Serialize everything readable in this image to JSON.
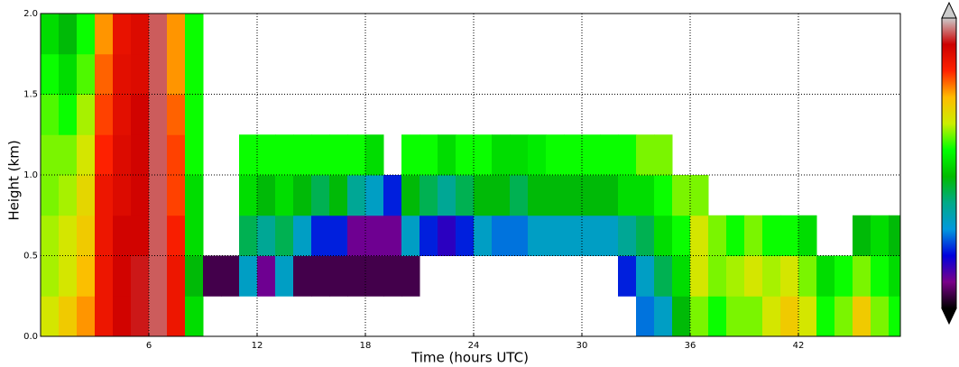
{
  "chart_data": {
    "type": "heatmap",
    "xlabel": "Time (hours UTC)",
    "ylabel": "Height (km)",
    "xlim": [
      0,
      47.65
    ],
    "xticks": [
      6,
      12,
      18,
      24,
      30,
      36,
      42
    ],
    "ylim": [
      0,
      2
    ],
    "yticks": [
      {
        "value": 0,
        "label": "0.0"
      },
      {
        "value": 0.5,
        "label": "0.5"
      },
      {
        "value": 1,
        "label": "1.0"
      },
      {
        "value": 1.5,
        "label": "1.5"
      },
      {
        "value": 2,
        "label": "2.0"
      }
    ],
    "grid": true,
    "zlim": [
      0,
      1
    ],
    "colormap": [
      "#000000",
      "#7a0089",
      "#0000dd",
      "#0099dd",
      "#00aa88",
      "#00bb00",
      "#00ff00",
      "#ccee00",
      "#ffbb00",
      "#ff2200",
      "#cc0000",
      "#cccccc"
    ],
    "x": [
      0,
      1,
      2,
      3,
      4,
      5,
      6,
      7,
      8,
      9,
      10,
      11,
      12,
      13,
      14,
      15,
      16,
      17,
      18,
      19,
      20,
      21,
      22,
      23,
      24,
      25,
      26,
      27,
      28,
      29,
      30,
      31,
      32,
      33,
      34,
      35,
      36,
      37,
      38,
      39,
      40,
      41,
      42,
      43,
      44,
      45,
      46,
      47
    ],
    "y": [
      0,
      0.25,
      0.5,
      0.75,
      1,
      1.25,
      1.5,
      1.75
    ],
    "z": [
      [
        0.65,
        0.62,
        0.62,
        0.6,
        0.6,
        0.58,
        0.55,
        0.5
      ],
      [
        0.7,
        0.65,
        0.65,
        0.62,
        0.6,
        0.55,
        0.5,
        0.45
      ],
      [
        0.75,
        0.72,
        0.7,
        0.68,
        0.65,
        0.62,
        0.58,
        0.55
      ],
      [
        0.85,
        0.85,
        0.85,
        0.85,
        0.82,
        0.8,
        0.78,
        0.75
      ],
      [
        0.9,
        0.9,
        0.9,
        0.88,
        0.88,
        0.87,
        0.87,
        0.86
      ],
      [
        0.92,
        0.92,
        0.9,
        0.9,
        0.9,
        0.9,
        0.88,
        0.88
      ],
      [
        0.95,
        0.95,
        0.95,
        0.95,
        0.95,
        0.95,
        0.95,
        0.95
      ],
      [
        0.85,
        0.85,
        0.83,
        0.8,
        0.8,
        0.78,
        0.75,
        0.75
      ],
      [
        0.5,
        0.45,
        0.5,
        0.5,
        0.55,
        0.55,
        0.55,
        0.55
      ],
      [
        null,
        0.05,
        null,
        null,
        null,
        null,
        null,
        null
      ],
      [
        null,
        0.05,
        null,
        null,
        null,
        null,
        null,
        null
      ],
      [
        null,
        0.3,
        0.4,
        0.5,
        0.55,
        null,
        null,
        null
      ],
      [
        null,
        0.1,
        0.35,
        0.45,
        0.55,
        null,
        null,
        null
      ],
      [
        null,
        0.3,
        0.4,
        0.5,
        0.55,
        null,
        null,
        null
      ],
      [
        null,
        0.05,
        0.3,
        0.45,
        0.55,
        null,
        null,
        null
      ],
      [
        null,
        0.05,
        0.2,
        0.4,
        0.55,
        null,
        null,
        null
      ],
      [
        null,
        0.05,
        0.2,
        0.45,
        0.55,
        null,
        null,
        null
      ],
      [
        null,
        0.05,
        0.1,
        0.35,
        0.55,
        null,
        null,
        null
      ],
      [
        null,
        0.05,
        0.1,
        0.3,
        0.5,
        null,
        null,
        null
      ],
      [
        null,
        0.05,
        0.1,
        0.2,
        null,
        null,
        null,
        null
      ],
      [
        null,
        0.05,
        0.3,
        0.45,
        0.55,
        null,
        null,
        null
      ],
      [
        null,
        null,
        0.2,
        0.4,
        0.55,
        null,
        null,
        null
      ],
      [
        null,
        null,
        0.15,
        0.35,
        0.5,
        null,
        null,
        null
      ],
      [
        null,
        null,
        0.2,
        0.4,
        0.55,
        null,
        null,
        null
      ],
      [
        null,
        null,
        0.3,
        0.45,
        0.55,
        null,
        null,
        null
      ],
      [
        null,
        null,
        0.25,
        0.45,
        0.5,
        null,
        null,
        null
      ],
      [
        null,
        null,
        0.25,
        0.4,
        0.5,
        null,
        null,
        null
      ],
      [
        null,
        null,
        0.3,
        0.45,
        0.52,
        null,
        null,
        null
      ],
      [
        null,
        null,
        0.3,
        0.45,
        0.55,
        null,
        null,
        null
      ],
      [
        null,
        null,
        0.3,
        0.45,
        0.55,
        null,
        null,
        null
      ],
      [
        null,
        null,
        0.3,
        0.45,
        0.55,
        null,
        null,
        null
      ],
      [
        null,
        null,
        0.3,
        0.45,
        0.55,
        null,
        null,
        null
      ],
      [
        null,
        0.2,
        0.35,
        0.5,
        0.55,
        null,
        null,
        null
      ],
      [
        0.25,
        0.3,
        0.4,
        0.5,
        0.6,
        null,
        null,
        null
      ],
      [
        0.3,
        0.4,
        0.5,
        0.55,
        0.6,
        null,
        null,
        null
      ],
      [
        0.45,
        0.5,
        0.55,
        0.6,
        null,
        null,
        null,
        null
      ],
      [
        0.6,
        0.65,
        0.65,
        0.6,
        null,
        null,
        null,
        null
      ],
      [
        0.55,
        0.6,
        0.6,
        null,
        null,
        null,
        null,
        null
      ],
      [
        0.6,
        0.62,
        0.55,
        null,
        null,
        null,
        null,
        null
      ],
      [
        0.6,
        0.65,
        0.6,
        null,
        null,
        null,
        null,
        null
      ],
      [
        0.65,
        0.62,
        0.55,
        null,
        null,
        null,
        null,
        null
      ],
      [
        0.7,
        0.65,
        0.55,
        null,
        null,
        null,
        null,
        null
      ],
      [
        0.65,
        0.6,
        0.5,
        null,
        null,
        null,
        null,
        null
      ],
      [
        0.55,
        0.5,
        null,
        null,
        null,
        null,
        null,
        null
      ],
      [
        0.6,
        0.55,
        null,
        null,
        null,
        null,
        null,
        null
      ],
      [
        0.7,
        0.6,
        0.45,
        null,
        null,
        null,
        null,
        null
      ],
      [
        0.6,
        0.55,
        0.5,
        null,
        null,
        null,
        null,
        null
      ],
      [
        0.55,
        0.5,
        0.45,
        null,
        null,
        null,
        null,
        null
      ]
    ]
  }
}
